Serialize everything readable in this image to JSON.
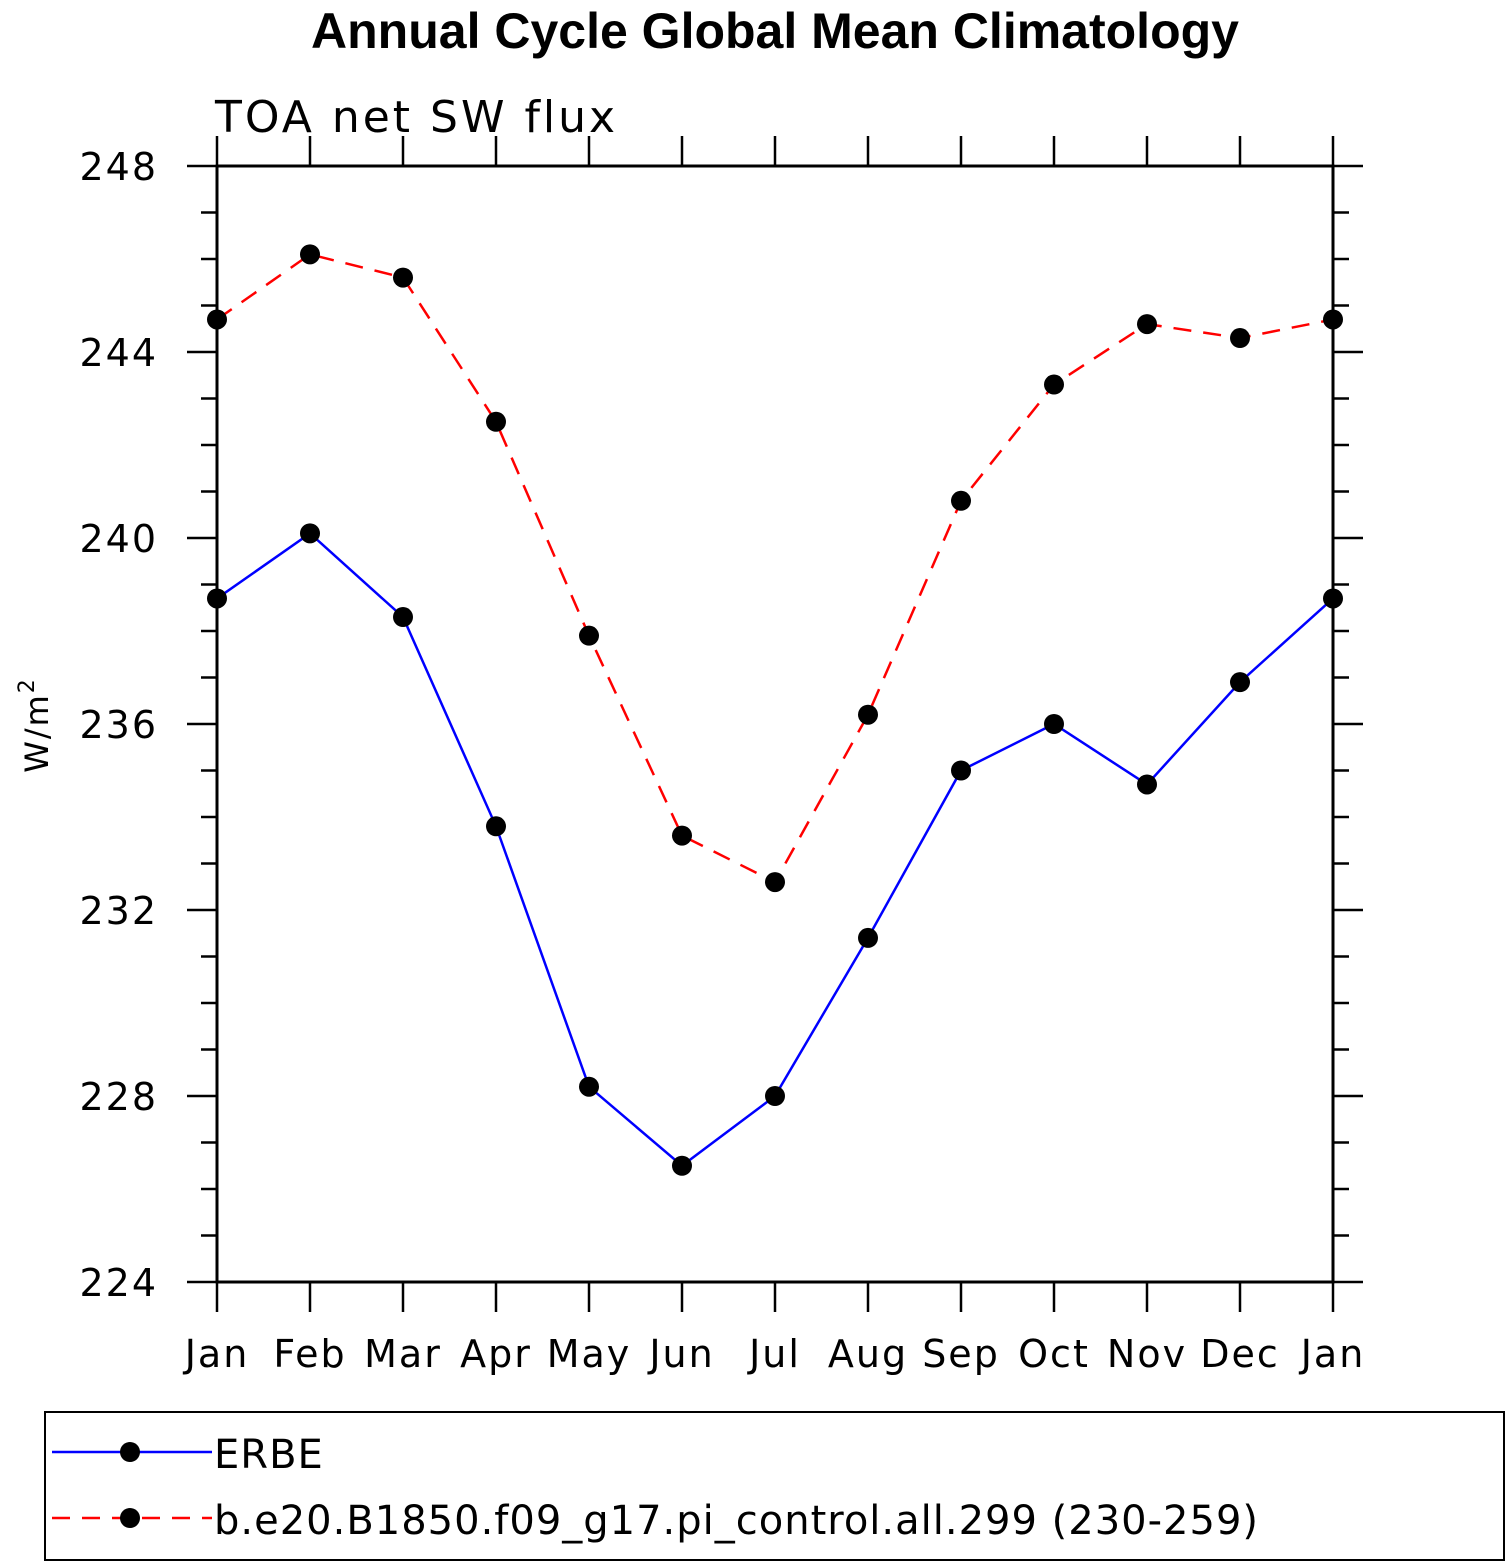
{
  "chart_data": {
    "type": "line",
    "title": "Annual Cycle Global Mean Climatology",
    "subtitle": "TOA net SW flux",
    "ylabel": "W/m",
    "ylabel_superscript": "2",
    "xlabel": "",
    "categories": [
      "Jan",
      "Feb",
      "Mar",
      "Apr",
      "May",
      "Jun",
      "Jul",
      "Aug",
      "Sep",
      "Oct",
      "Nov",
      "Dec",
      "Jan"
    ],
    "ylim": [
      224,
      248
    ],
    "yticks": [
      224,
      228,
      232,
      236,
      240,
      244,
      248
    ],
    "ytick_labels": [
      "224",
      "228",
      "232",
      "236",
      "240",
      "244",
      "248"
    ],
    "legend_position": "bottom",
    "series": [
      {
        "name": "ERBE",
        "color": "#0000ff",
        "dash": "solid",
        "values": [
          238.7,
          240.1,
          238.3,
          233.8,
          228.2,
          226.5,
          228.0,
          231.4,
          235.0,
          236.0,
          234.7,
          236.9,
          238.7
        ]
      },
      {
        "name": "b.e20.B1850.f09_g17.pi_control.all.299 (230-259)",
        "color": "#ff0000",
        "dash": "dashed",
        "values": [
          244.7,
          246.1,
          245.6,
          242.5,
          237.9,
          233.6,
          232.6,
          236.2,
          240.8,
          243.3,
          244.6,
          244.3,
          244.7
        ]
      }
    ]
  }
}
